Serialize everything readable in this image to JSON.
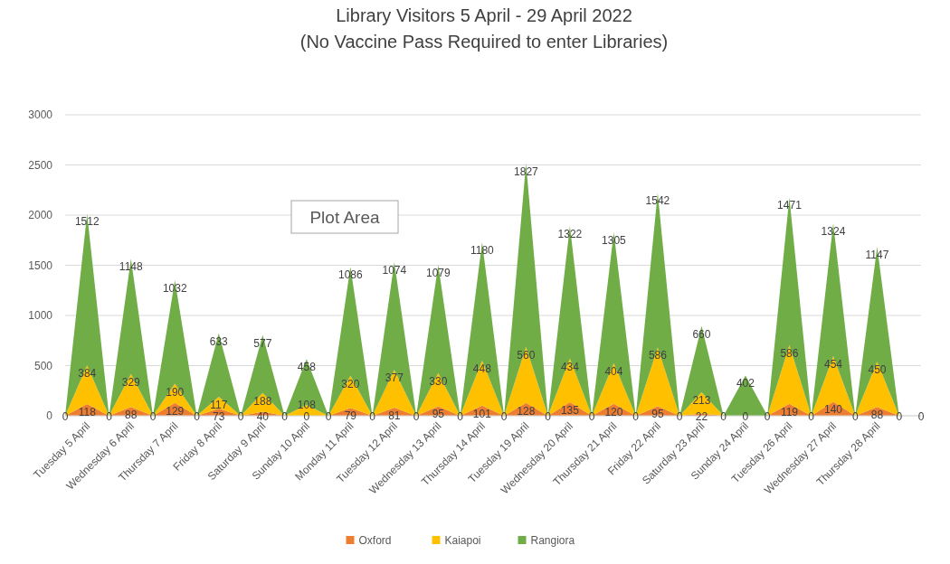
{
  "chart_data": {
    "type": "area",
    "stacked": true,
    "title": "Library Visitors 5 April - 29 April 2022",
    "subtitle": "(No Vaccine Pass Required to enter Libraries)",
    "categories": [
      null,
      "Tuesday 5 April",
      null,
      "Wednesday 6 April",
      null,
      "Thursday 7 April",
      null,
      "Friday 8 April",
      null,
      "Saturday 9 April",
      null,
      "Sunday 10 April",
      null,
      "Monday 11 April",
      null,
      "Tuesday 12 April",
      null,
      "Wednesday 13 April",
      null,
      "Thursday 14 April",
      null,
      "Tuesday 19 April",
      null,
      "Wednesday 20 April",
      null,
      "Thursday 21 April",
      null,
      "Friday 22 April",
      null,
      "Saturday 23 April",
      null,
      "Sunday 24 April",
      null,
      "Tuesday 26 April",
      null,
      "Wednesday 27 April",
      null,
      "Thursday 28 April",
      null,
      null
    ],
    "series": [
      {
        "name": "Oxford",
        "color": "#ed7d31",
        "values": [
          0,
          118,
          0,
          88,
          0,
          129,
          0,
          73,
          0,
          40,
          0,
          0,
          0,
          79,
          0,
          81,
          0,
          95,
          0,
          101,
          0,
          128,
          0,
          135,
          0,
          120,
          0,
          95,
          0,
          22,
          0,
          0,
          0,
          119,
          0,
          140,
          0,
          88,
          0,
          0
        ],
        "value_labels": [
          "0",
          "118",
          "0",
          "88",
          "0",
          "129",
          "0",
          "73",
          "0",
          "40",
          "0",
          "0",
          "0",
          "79",
          "0",
          "81",
          "0",
          "95",
          "0",
          "101",
          "0",
          "128",
          "0",
          "135",
          "0",
          "120",
          "0",
          "95",
          "0",
          "22",
          "0",
          "0",
          "0",
          "119",
          "0",
          "140",
          "0",
          "88",
          "0",
          "0"
        ]
      },
      {
        "name": "Kaiapoi",
        "color": "#ffc000",
        "values": [
          0,
          384,
          0,
          329,
          0,
          190,
          0,
          117,
          0,
          188,
          0,
          108,
          0,
          320,
          0,
          377,
          0,
          330,
          0,
          448,
          0,
          560,
          0,
          434,
          0,
          404,
          0,
          586,
          0,
          213,
          0,
          0,
          0,
          586,
          0,
          454,
          0,
          450,
          0,
          0
        ],
        "value_labels": [
          null,
          "384",
          null,
          "329",
          null,
          "190",
          null,
          "117",
          null,
          "188",
          null,
          "108",
          null,
          "320",
          null,
          "377",
          null,
          "330",
          null,
          "448",
          null,
          "560",
          null,
          "434",
          null,
          "404",
          null,
          "586",
          null,
          "213",
          null,
          null,
          null,
          "586",
          null,
          "454",
          null,
          "450",
          null,
          null
        ]
      },
      {
        "name": "Rangiora",
        "color": "#70ad47",
        "values": [
          0,
          1512,
          0,
          1148,
          0,
          1032,
          0,
          633,
          0,
          577,
          0,
          458,
          0,
          1086,
          0,
          1074,
          0,
          1079,
          0,
          1180,
          0,
          1827,
          0,
          1322,
          0,
          1305,
          0,
          1542,
          0,
          660,
          0,
          402,
          0,
          1471,
          0,
          1324,
          0,
          1147,
          0,
          0
        ],
        "value_labels": [
          null,
          "1512",
          null,
          "1148",
          null,
          "1032",
          null,
          "633",
          null,
          "577",
          null,
          "458",
          null,
          "1086",
          null,
          "1074",
          null,
          "1079",
          null,
          "1180",
          null,
          "1827",
          null,
          "1322",
          null,
          "1305",
          null,
          "1542",
          null,
          "660",
          null,
          "402",
          null,
          "1471",
          null,
          "1324",
          null,
          "1147",
          null,
          null
        ]
      }
    ],
    "ylim": [
      0,
      3000
    ],
    "yticks": [
      0,
      500,
      1000,
      1500,
      2000,
      2500,
      3000
    ],
    "grid": "y",
    "legend": "bottom",
    "annotations": [
      "Plot Area"
    ]
  }
}
